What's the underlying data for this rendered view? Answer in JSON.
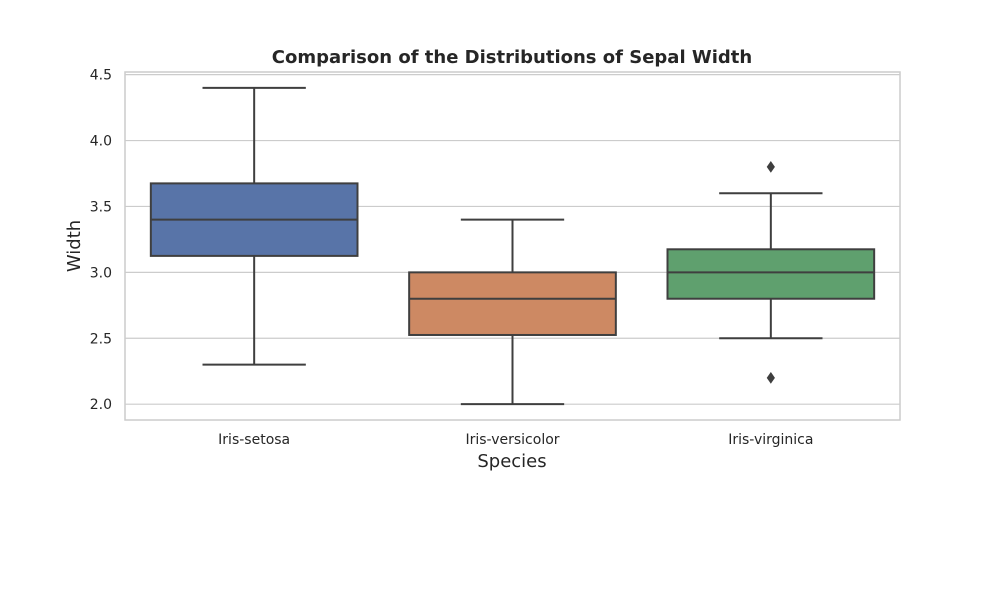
{
  "chart_data": {
    "type": "box",
    "title": "Comparison of the Distributions of Sepal Width",
    "xlabel": "Species",
    "ylabel": "Width",
    "ylim": [
      1.88,
      4.52
    ],
    "yticks": [
      "2.0",
      "2.5",
      "3.0",
      "3.5",
      "4.0",
      "4.5"
    ],
    "grid": "horizontal",
    "categories": [
      "Iris-setosa",
      "Iris-versicolor",
      "Iris-virginica"
    ],
    "boxes": [
      {
        "category": "Iris-setosa",
        "whisker_low": 2.3,
        "q1": 3.125,
        "median": 3.4,
        "q3": 3.675,
        "whisker_high": 4.4,
        "outliers": [],
        "color": "#5874a8"
      },
      {
        "category": "Iris-versicolor",
        "whisker_low": 2.0,
        "q1": 2.525,
        "median": 2.8,
        "q3": 3.0,
        "whisker_high": 3.4,
        "outliers": [],
        "color": "#cd8963"
      },
      {
        "category": "Iris-virginica",
        "whisker_low": 2.5,
        "q1": 2.8,
        "median": 3.0,
        "q3": 3.175,
        "whisker_high": 3.6,
        "outliers": [
          3.8,
          2.2
        ],
        "color": "#5fa06e"
      }
    ],
    "line_color": "#3f3f3f",
    "grid_color": "#cccccc",
    "frame_color": "#cccccc"
  }
}
